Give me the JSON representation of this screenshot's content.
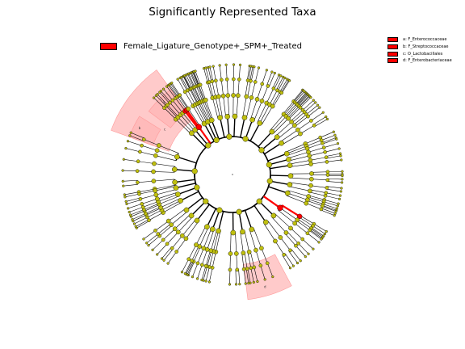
{
  "title": "Significantly Represented Taxa",
  "class_legend": {
    "label": "Female_Ligature_Genotype+_SPM+_Treated",
    "color": "#ff0000"
  },
  "taxa_legend": [
    {
      "key": "a",
      "text": "a: F_Enterococcaceae"
    },
    {
      "key": "b",
      "text": "b: F_Streptococcaceae"
    },
    {
      "key": "c",
      "text": "c: O_Lactobacillales"
    },
    {
      "key": "d",
      "text": "d: F_Enterobacteriaceae"
    }
  ],
  "highlight_labels": [
    "a",
    "b",
    "c",
    "d"
  ],
  "colors": {
    "significant": "#ff0000",
    "nonsignificant": "#bfbf0f",
    "sector": "#ffb3b3",
    "edge": "#000000"
  },
  "tree": {
    "leaf_count": 100,
    "significant_nodes": [
      "c: O_Lactobacillales",
      "a: F_Enterococcaceae",
      "b: F_Streptococcaceae",
      "d: F_Enterobacteriaceae"
    ]
  }
}
